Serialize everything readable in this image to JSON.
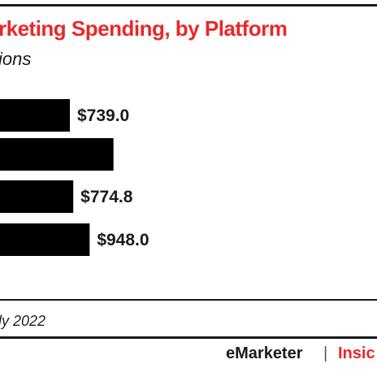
{
  "colors": {
    "accent": "#e8282b",
    "bar": "#000000",
    "text": "#1a1a1a"
  },
  "chart_data": {
    "type": "bar",
    "orientation": "horizontal",
    "title": "rketing Spending, by Platform",
    "subtitle": "ions",
    "categories": [
      "",
      "",
      "",
      ""
    ],
    "values": [
      739.0,
      1200.0,
      774.8,
      948.0
    ],
    "data_labels": [
      "$739.0",
      "",
      "$774.8",
      "$948.0"
    ],
    "grid": false,
    "legend": "none"
  },
  "footer": {
    "source": "ly 2022",
    "brand": "eMarketer",
    "brand_sep": "|",
    "brand2": "Insic"
  }
}
